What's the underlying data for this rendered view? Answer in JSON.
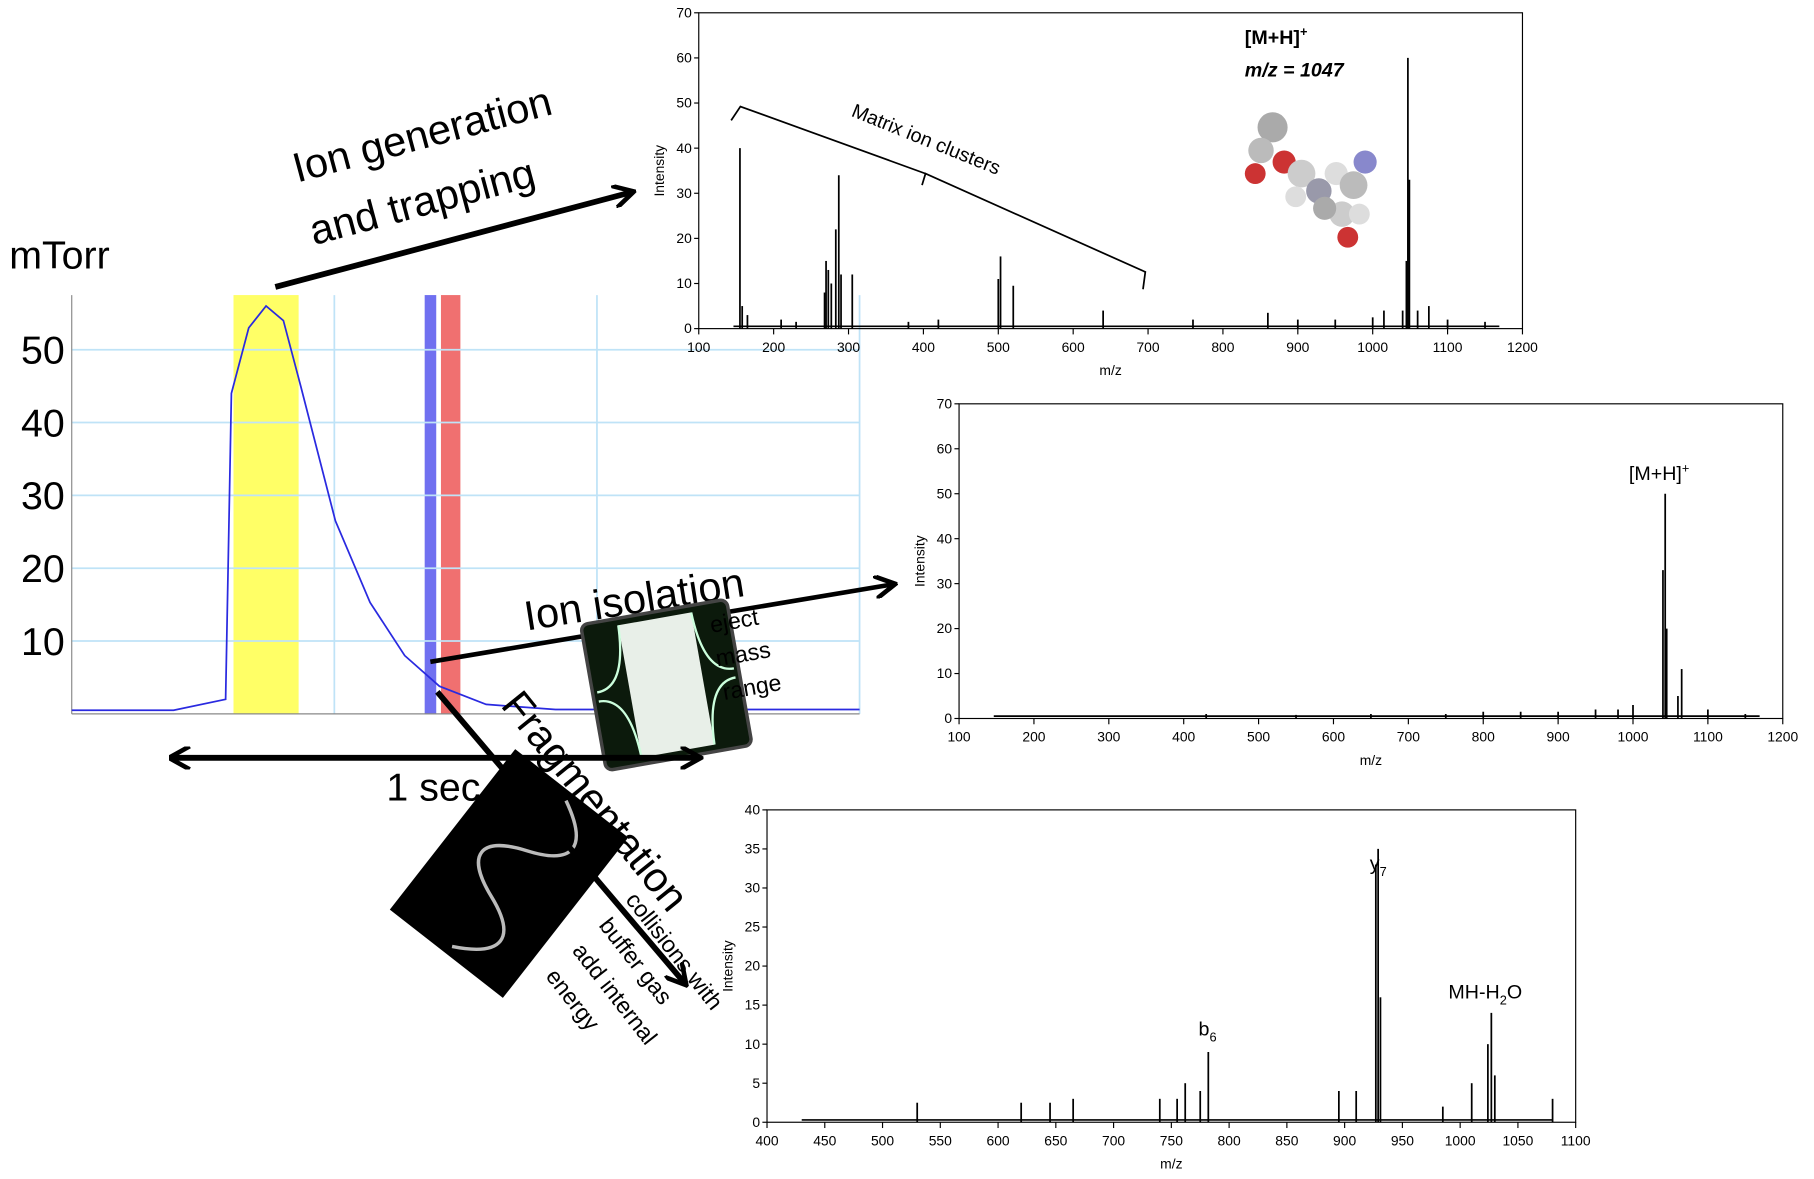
{
  "chart_data": [
    {
      "type": "line",
      "ylabel": "mTorr",
      "xlim": [
        0,
        1.5
      ],
      "ylim": [
        0,
        57.5
      ],
      "xticks": [
        0.5,
        1,
        1.5
      ],
      "yticks": [
        10,
        20,
        30,
        40,
        50
      ],
      "grid": true,
      "color": "#2a2ae0",
      "x": [
        0,
        0.194,
        0.293,
        0.304,
        0.337,
        0.37,
        0.403,
        0.436,
        0.502,
        0.568,
        0.634,
        0.7,
        0.789,
        0.921,
        1.5
      ],
      "values": [
        0.5,
        0.5,
        2,
        44,
        53,
        56,
        54,
        45,
        26.5,
        15.3,
        8,
        3.8,
        1.3,
        0.6,
        0.6
      ],
      "bands": [
        {
          "start": 0.308,
          "end": 0.432,
          "color": "#ffff66"
        },
        {
          "start": 0.672,
          "end": 0.694,
          "color": "#7070f0"
        },
        {
          "start": 0.703,
          "end": 0.74,
          "color": "#f07070"
        }
      ]
    },
    {
      "type": "stem",
      "xlabel": "m/z",
      "ylabel": "Intensity",
      "xlim": [
        100,
        1200
      ],
      "ylim": [
        0,
        70
      ],
      "xticks": [
        100,
        200,
        300,
        400,
        500,
        600,
        700,
        800,
        900,
        1000,
        1100,
        1200
      ],
      "yticks": [
        0,
        10,
        20,
        30,
        40,
        50,
        60,
        70
      ],
      "color": "#000000",
      "x": [
        155,
        158,
        165,
        210,
        230,
        268,
        270,
        273,
        277,
        283,
        287,
        290,
        305,
        380,
        420,
        500,
        503,
        520,
        640,
        760,
        860,
        900,
        950,
        1000,
        1015,
        1040,
        1045,
        1047,
        1049,
        1060,
        1075,
        1100,
        1150
      ],
      "values": [
        40,
        5,
        3,
        2,
        1.5,
        8,
        15,
        13,
        10,
        22,
        34,
        12,
        12,
        1.5,
        2,
        11,
        16,
        9.5,
        4,
        2,
        3.5,
        2,
        2,
        2.5,
        4,
        4,
        15,
        60,
        33,
        4,
        5,
        2,
        1.5
      ],
      "annotations": [
        {
          "text": "[M+H]",
          "sup": "+"
        },
        {
          "text": "m/z = 1047"
        },
        {
          "text": "Matrix ion clusters"
        }
      ]
    },
    {
      "type": "stem",
      "xlabel": "m/z",
      "ylabel": "Intensity",
      "xlim": [
        100,
        1200
      ],
      "ylim": [
        0,
        70
      ],
      "xticks": [
        100,
        200,
        300,
        400,
        500,
        600,
        700,
        800,
        900,
        1000,
        1100,
        1200
      ],
      "yticks": [
        0,
        10,
        20,
        30,
        40,
        50,
        60,
        70
      ],
      "color": "#000000",
      "x": [
        430,
        550,
        650,
        750,
        800,
        850,
        900,
        950,
        980,
        1000,
        1040,
        1043,
        1045,
        1060,
        1065,
        1100,
        1150
      ],
      "values": [
        1,
        0.8,
        1,
        1,
        1.5,
        1.5,
        1.5,
        2,
        2,
        3,
        33,
        50,
        20,
        5,
        11,
        2,
        1
      ],
      "annotations": [
        {
          "text": "[M+H]",
          "sup": "+"
        }
      ]
    },
    {
      "type": "stem",
      "xlabel": "m/z",
      "ylabel": "Intensity",
      "xlim": [
        400,
        1100
      ],
      "ylim": [
        0,
        40
      ],
      "xticks": [
        400,
        450,
        500,
        550,
        600,
        650,
        700,
        750,
        800,
        850,
        900,
        950,
        1000,
        1050,
        1100
      ],
      "yticks": [
        0,
        5,
        10,
        15,
        20,
        25,
        30,
        35,
        40
      ],
      "color": "#000000",
      "x": [
        530,
        620,
        645,
        665,
        740,
        755,
        762,
        775,
        782,
        895,
        910,
        927,
        929,
        931,
        985,
        1010,
        1024,
        1027,
        1030,
        1080
      ],
      "values": [
        2.5,
        2.5,
        2.5,
        3,
        3,
        3,
        5,
        4,
        9,
        4,
        4,
        33,
        35,
        16,
        2,
        5,
        10,
        14,
        6,
        3
      ],
      "annotations": [
        {
          "text": "b",
          "sub": "6"
        },
        {
          "text": "y",
          "sub": "7"
        },
        {
          "text": "MH-H",
          "sub": "2",
          "after": "O"
        }
      ]
    }
  ],
  "diagram": {
    "ion_generation": [
      "Ion generation",
      "and trapping"
    ],
    "ion_isolation": "Ion isolation",
    "eject": [
      "eject",
      "mass",
      "range"
    ],
    "fragmentation": "Fragmentation",
    "collisions": [
      "collisions with",
      "buffer gas",
      "add internal",
      "energy"
    ],
    "time": "1 sec"
  }
}
